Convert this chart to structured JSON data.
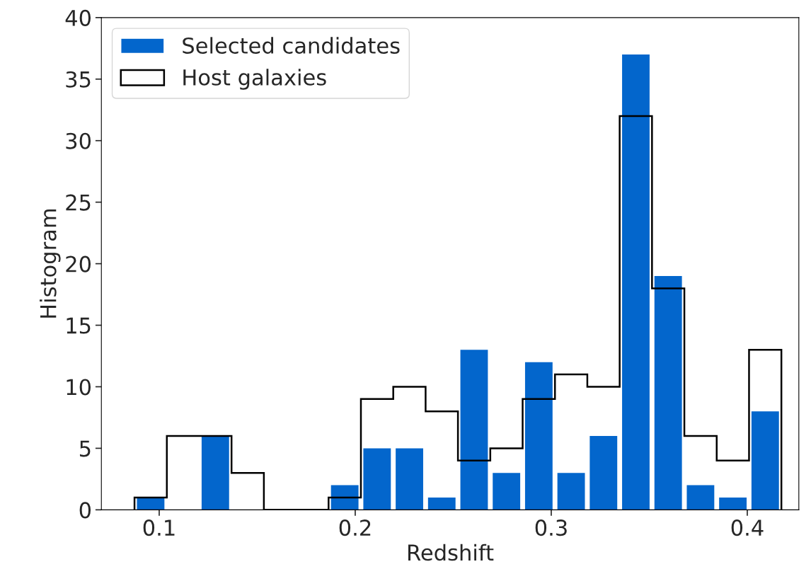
{
  "chart_data": {
    "type": "histogram",
    "xlabel": "Redshift",
    "ylabel": "Histogram",
    "bins": [
      0.0874,
      0.1039,
      0.1204,
      0.1369,
      0.1534,
      0.1699,
      0.1864,
      0.2029,
      0.2194,
      0.2359,
      0.2524,
      0.2689,
      0.2854,
      0.3019,
      0.3184,
      0.3349,
      0.3514,
      0.3679,
      0.3844,
      0.4009,
      0.4174
    ],
    "series": [
      {
        "name": "Selected candidates",
        "color": "#0366cc",
        "values": [
          1,
          0,
          6,
          0,
          0,
          0,
          2,
          5,
          5,
          1,
          13,
          3,
          12,
          3,
          6,
          37,
          19,
          2,
          1,
          8
        ]
      },
      {
        "name": "Host galaxies",
        "color": "#000000",
        "type": "histogram",
        "line_style": "solid",
        "values": [
          1,
          6,
          6,
          3,
          0,
          0,
          1,
          9,
          10,
          8,
          4,
          5,
          9,
          11,
          10,
          32,
          18,
          6,
          4,
          13
        ]
      }
    ],
    "xlim": [
      0.0705,
      0.4263
    ],
    "xticks": [
      0.1,
      0.2,
      0.3,
      0.4
    ],
    "ylim": [
      0,
      40
    ],
    "yticks": [
      0,
      5,
      10,
      15,
      20,
      25,
      30,
      35,
      40
    ],
    "grid": false,
    "legend": "top left"
  }
}
